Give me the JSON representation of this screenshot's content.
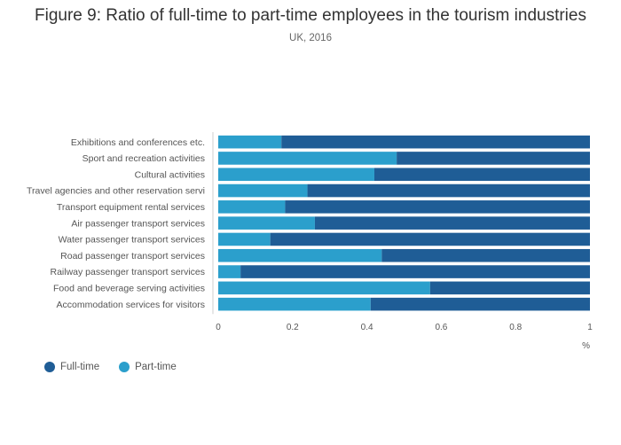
{
  "header": {
    "title": "Figure 9: Ratio of full-time to part-time employees in the tourism industries",
    "subtitle": "UK, 2016"
  },
  "colors": {
    "full_time": "#1f5d96",
    "part_time": "#2b9fcc"
  },
  "chart_data": {
    "type": "bar",
    "orientation": "horizontal",
    "stacked": true,
    "title": "Figure 9: Ratio of full-time to part-time employees in the tourism industries",
    "subtitle": "UK, 2016",
    "xlabel": "%",
    "ylabel": "",
    "xlim": [
      0,
      1
    ],
    "xticks": [
      "0",
      "0.2",
      "0.4",
      "0.6",
      "0.8",
      "1"
    ],
    "categories": [
      "Exhibitions and conferences etc.",
      "Sport and recreation activities",
      "Cultural activities",
      "Travel agencies and other reservation servi",
      "Transport equipment rental services",
      "Air passenger transport services",
      "Water passenger transport services",
      "Road passenger transport services",
      "Railway passenger transport services",
      "Food and beverage serving activities",
      "Accommodation services for visitors"
    ],
    "series": [
      {
        "name": "Part-time",
        "values": [
          0.17,
          0.48,
          0.42,
          0.24,
          0.18,
          0.26,
          0.14,
          0.44,
          0.06,
          0.57,
          0.41
        ]
      },
      {
        "name": "Full-time",
        "values": [
          0.83,
          0.52,
          0.58,
          0.76,
          0.82,
          0.74,
          0.86,
          0.56,
          0.94,
          0.43,
          0.59
        ]
      }
    ],
    "legend": [
      "Full-time",
      "Part-time"
    ],
    "legend_position": "bottom-left",
    "grid": false
  }
}
